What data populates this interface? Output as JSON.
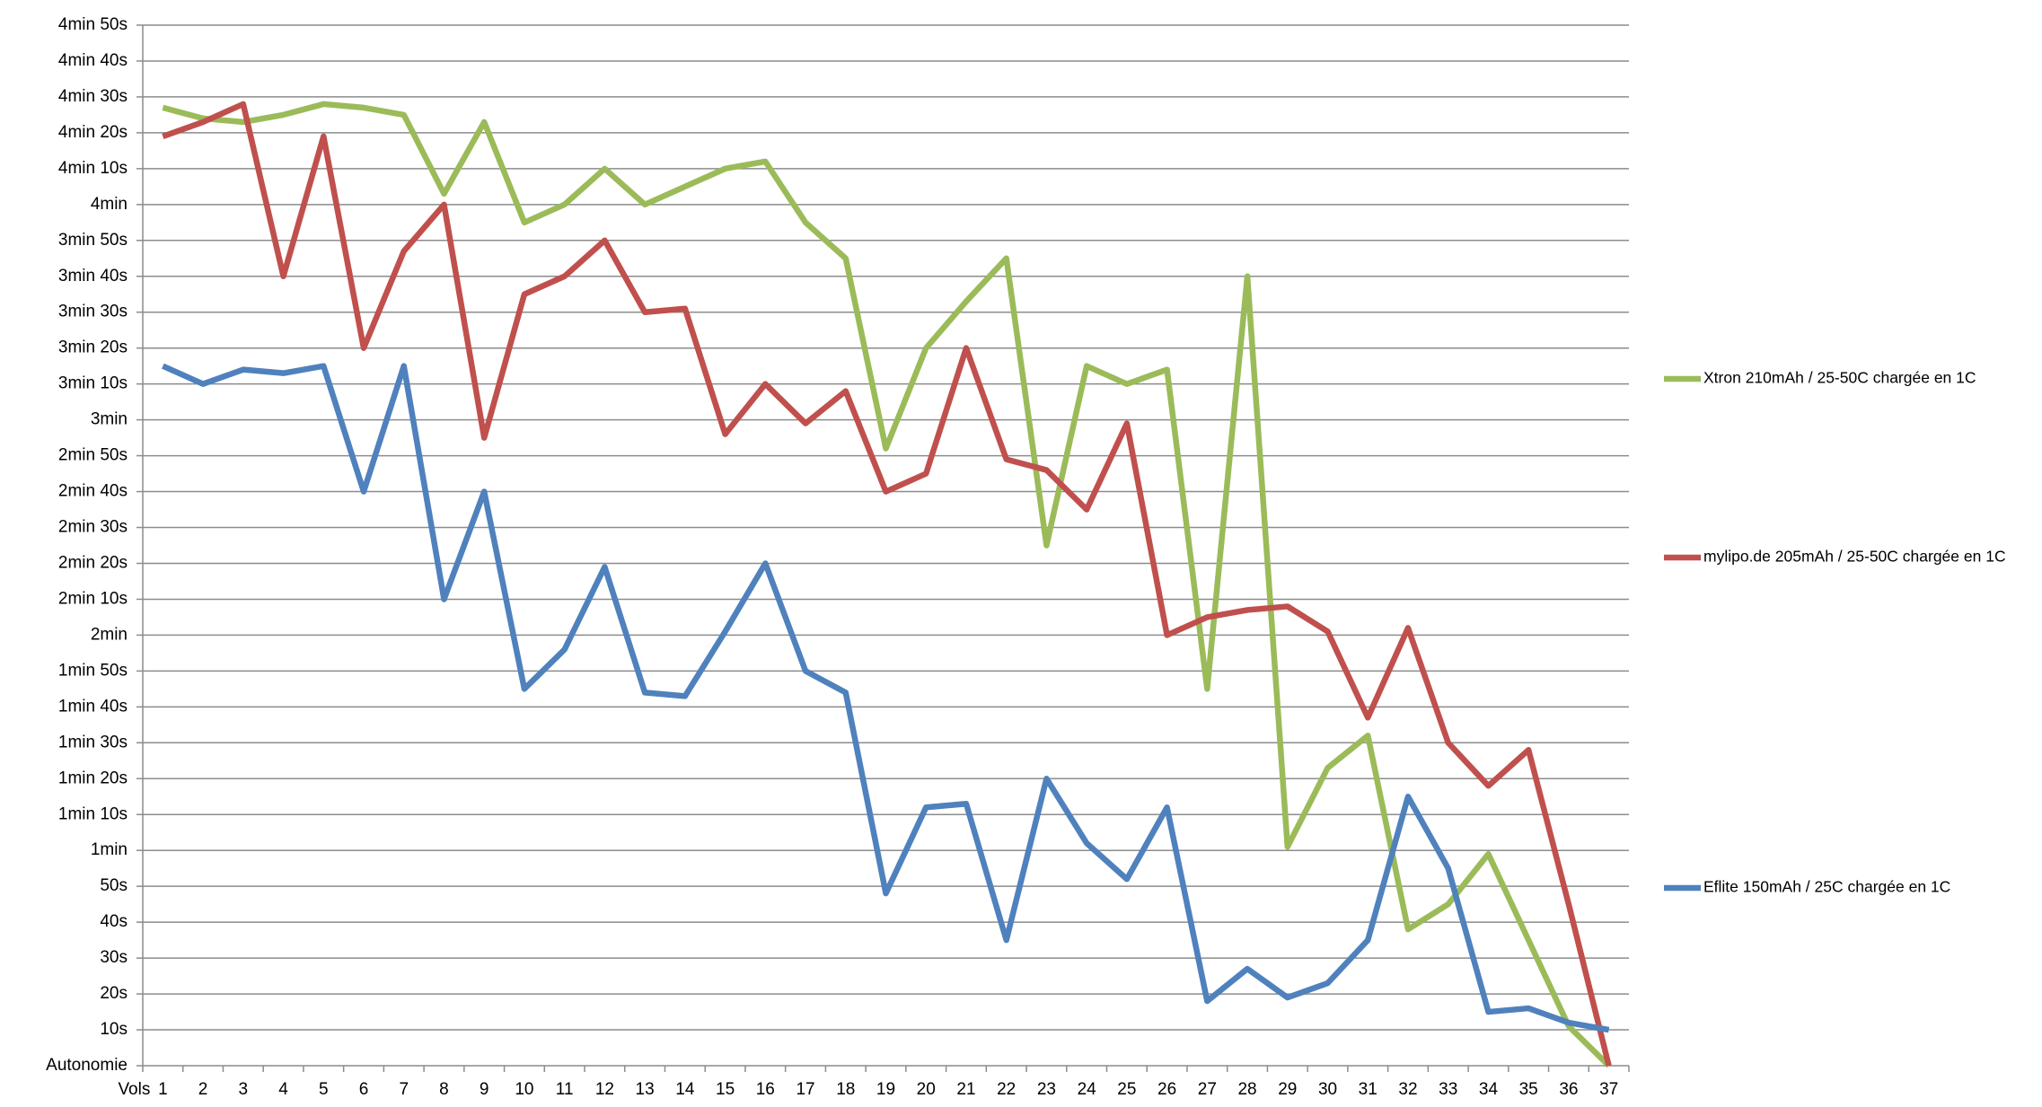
{
  "chart_data": {
    "type": "line",
    "x_label": "Vols",
    "categories": [
      1,
      2,
      3,
      4,
      5,
      6,
      7,
      8,
      9,
      10,
      11,
      12,
      13,
      14,
      15,
      16,
      17,
      18,
      19,
      20,
      21,
      22,
      23,
      24,
      25,
      26,
      27,
      28,
      29,
      30,
      31,
      32,
      33,
      34,
      35,
      36,
      37
    ],
    "ylim": [
      0,
      290
    ],
    "yticks": [
      {
        "value": 0,
        "label": "Autonomie"
      },
      {
        "value": 10,
        "label": "10s"
      },
      {
        "value": 20,
        "label": "20s"
      },
      {
        "value": 30,
        "label": "30s"
      },
      {
        "value": 40,
        "label": "40s"
      },
      {
        "value": 50,
        "label": "50s"
      },
      {
        "value": 60,
        "label": "1min"
      },
      {
        "value": 70,
        "label": "1min 10s"
      },
      {
        "value": 80,
        "label": "1min 20s"
      },
      {
        "value": 90,
        "label": "1min 30s"
      },
      {
        "value": 100,
        "label": "1min 40s"
      },
      {
        "value": 110,
        "label": "1min 50s"
      },
      {
        "value": 120,
        "label": "2min"
      },
      {
        "value": 130,
        "label": "2min 10s"
      },
      {
        "value": 140,
        "label": "2min 20s"
      },
      {
        "value": 150,
        "label": "2min 30s"
      },
      {
        "value": 160,
        "label": "2min 40s"
      },
      {
        "value": 170,
        "label": "2min 50s"
      },
      {
        "value": 180,
        "label": "3min"
      },
      {
        "value": 190,
        "label": "3min 10s"
      },
      {
        "value": 200,
        "label": "3min 20s"
      },
      {
        "value": 210,
        "label": "3min 30s"
      },
      {
        "value": 220,
        "label": "3min 40s"
      },
      {
        "value": 230,
        "label": "3min 50s"
      },
      {
        "value": 240,
        "label": "4min"
      },
      {
        "value": 250,
        "label": "4min 10s"
      },
      {
        "value": 260,
        "label": "4min 20s"
      },
      {
        "value": 270,
        "label": "4min 30s"
      },
      {
        "value": 280,
        "label": "4min 40s"
      },
      {
        "value": 290,
        "label": "4min 50s"
      }
    ],
    "grid": true,
    "series": [
      {
        "name": "Xtron 210mAh / 25-50C chargée en 1C",
        "color": "#9bbb59",
        "values": [
          267,
          264,
          263,
          265,
          268,
          267,
          265,
          243,
          263,
          235,
          240,
          250,
          240,
          245,
          250,
          252,
          235,
          225,
          172,
          200,
          213,
          225,
          145,
          195,
          190,
          194,
          105,
          220,
          61,
          83,
          92,
          38,
          45,
          59,
          35,
          11,
          0
        ]
      },
      {
        "name": "mylipo.de 205mAh / 25-50C chargée en 1C",
        "color": "#c0504d",
        "values": [
          259,
          263,
          268,
          220,
          259,
          200,
          227,
          240,
          175,
          215,
          220,
          230,
          210,
          211,
          176,
          190,
          179,
          188,
          160,
          165,
          200,
          169,
          166,
          155,
          179,
          120,
          125,
          127,
          128,
          121,
          97,
          122,
          90,
          78,
          88,
          45,
          0
        ]
      },
      {
        "name": "Eflite 150mAh / 25C chargée en 1C",
        "color": "#4f81bd",
        "values": [
          195,
          190,
          194,
          193,
          195,
          160,
          195,
          130,
          160,
          105,
          116,
          139,
          104,
          103,
          121,
          140,
          110,
          104,
          48,
          72,
          73,
          35,
          80,
          62,
          52,
          72,
          18,
          27,
          19,
          23,
          35,
          75,
          55,
          15,
          16,
          12,
          10
        ]
      }
    ]
  }
}
